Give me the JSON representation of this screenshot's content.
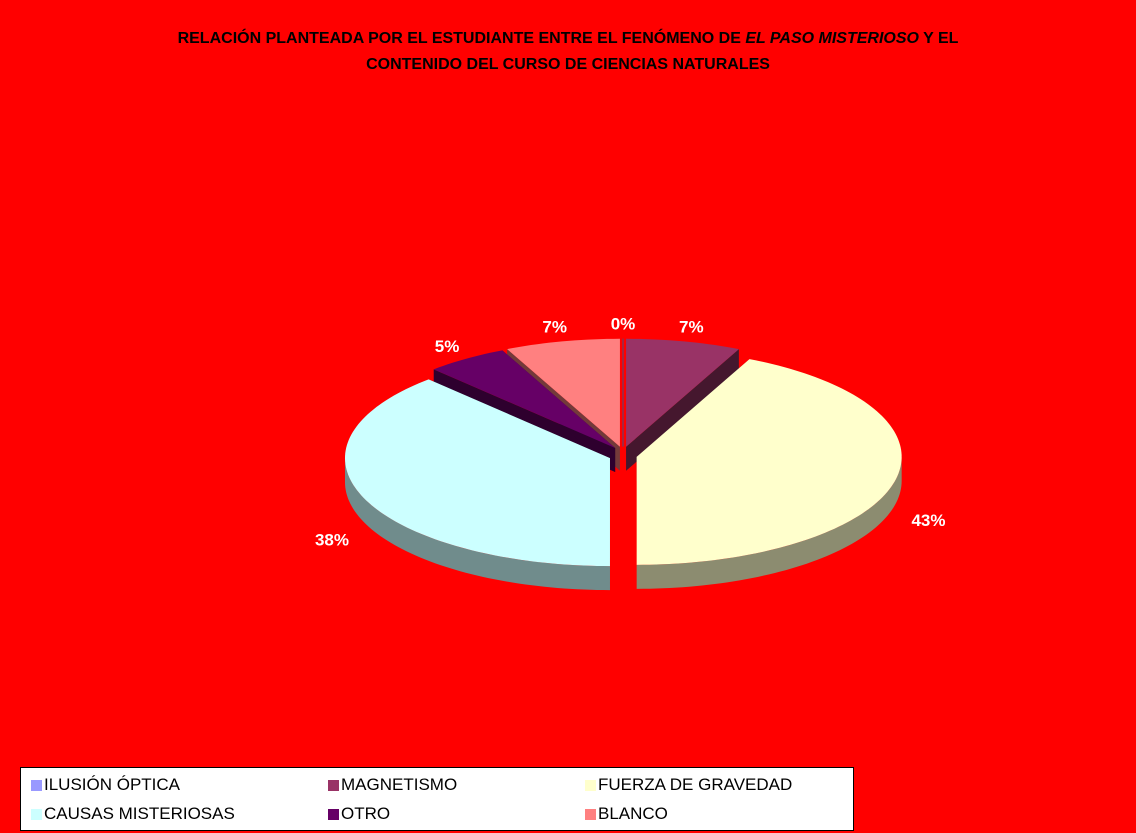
{
  "chart_data": {
    "type": "pie",
    "title": {
      "before": "RELACIÓN PLANTEADA POR EL ESTUDIANTE ENTRE EL FENÓMENO DE",
      "italic": "EL PASO MISTERIOSO",
      "after": "Y EL CONTENIDO DEL CURSO DE CIENCIAS NATURALES"
    },
    "categories": [
      "ILUSIÓN ÓPTICA",
      "MAGNETISMO",
      "FUERZA DE GRAVEDAD",
      "CAUSAS MISTERIOSAS",
      "OTRO",
      "BLANCO"
    ],
    "values": [
      0,
      7,
      43,
      38,
      5,
      7
    ],
    "value_labels": [
      "0%",
      "7%",
      "43%",
      "38%",
      "5%",
      "7%"
    ],
    "colors": [
      "#9999ff",
      "#993366",
      "#ffffcc",
      "#ccffff",
      "#660066",
      "#ff8080"
    ],
    "legend": "bottom"
  }
}
